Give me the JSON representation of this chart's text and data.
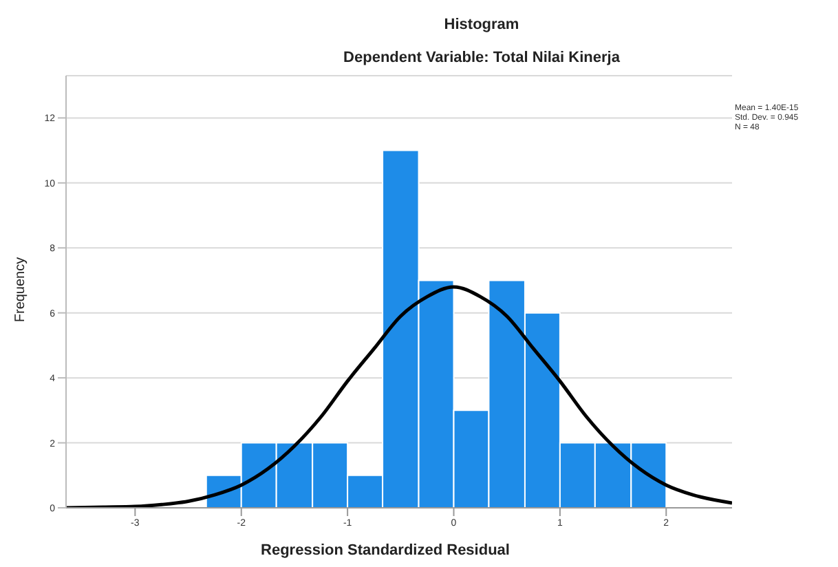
{
  "chart_data": {
    "type": "histogram",
    "title": "Histogram",
    "subtitle": "Dependent Variable: Total Nilai Kinerja",
    "xlabel": "Regression Standardized Residual",
    "ylabel": "Frequency",
    "annotations": [
      "Mean = 1.40E-15\nStd. Dev. = 0.945\nN = 48"
    ],
    "bins": [
      -2.33,
      -2.0,
      -1.67,
      -1.33,
      -1.0,
      -0.67,
      -0.33,
      0.0,
      0.33,
      0.67,
      1.0,
      1.33,
      1.67,
      2.0
    ],
    "values": [
      1,
      2,
      2,
      2,
      1,
      11,
      7,
      3,
      7,
      6,
      2,
      2,
      2
    ],
    "color": "#1e8ce8",
    "series": [
      {
        "type": "line",
        "color": "#000000",
        "x": [
          -3.65,
          -3.3,
          -3.0,
          -2.75,
          -2.5,
          -2.25,
          -2.0,
          -1.75,
          -1.5,
          -1.25,
          -1.0,
          -0.75,
          -0.5,
          -0.25,
          0.0,
          0.25,
          0.5,
          0.75,
          1.0,
          1.25,
          1.5,
          1.75,
          2.0,
          2.25,
          2.62
        ],
        "values": [
          0.0,
          0.02,
          0.04,
          0.1,
          0.2,
          0.4,
          0.7,
          1.2,
          1.9,
          2.8,
          3.9,
          4.9,
          5.9,
          6.5,
          6.8,
          6.5,
          5.9,
          4.9,
          3.9,
          2.8,
          1.9,
          1.2,
          0.7,
          0.4,
          0.15
        ]
      }
    ],
    "xlim": [
      -3.65,
      2.62
    ],
    "xticks": [
      -3,
      -2,
      -1,
      0,
      1,
      2
    ],
    "ylim": [
      0,
      13.3
    ],
    "yticks": [
      0,
      2,
      4,
      6,
      8,
      10,
      12
    ],
    "grid": "y"
  }
}
